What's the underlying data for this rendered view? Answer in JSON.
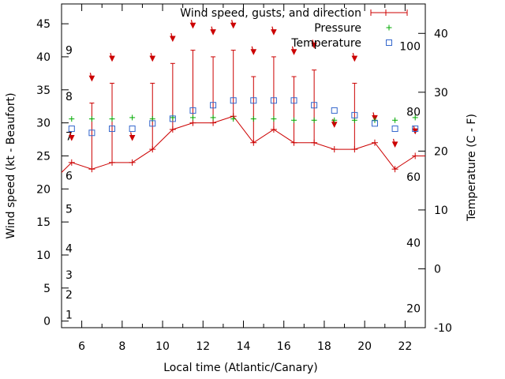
{
  "chart_data": {
    "type": "line",
    "title": "",
    "xlabel": "Local time (Atlantic/Canary)",
    "ylabel_left": "Wind speed (kt - Beaufort)",
    "ylabel_right": "Temperature (C - F)",
    "xlim": [
      5,
      23
    ],
    "ylim_left": [
      -1,
      48
    ],
    "ylim_right": [
      -10,
      45
    ],
    "x_ticks": [
      6,
      8,
      10,
      12,
      14,
      16,
      18,
      20,
      22
    ],
    "y_left_ticks": [
      0,
      5,
      10,
      15,
      20,
      25,
      30,
      35,
      40,
      45
    ],
    "y_right_ticks": [
      -10,
      0,
      10,
      20,
      30,
      40
    ],
    "beaufort_labels": [
      {
        "label": "1",
        "kt": 1
      },
      {
        "label": "2",
        "kt": 4
      },
      {
        "label": "3",
        "kt": 7
      },
      {
        "label": "4",
        "kt": 11
      },
      {
        "label": "5",
        "kt": 17
      },
      {
        "label": "6",
        "kt": 22
      },
      {
        "label": "7",
        "kt": 28
      },
      {
        "label": "8",
        "kt": 34
      },
      {
        "label": "9",
        "kt": 41
      }
    ],
    "fahrenheit_labels": [
      {
        "label": "20",
        "c": -6.7
      },
      {
        "label": "40",
        "c": 4.4
      },
      {
        "label": "60",
        "c": 15.6
      },
      {
        "label": "80",
        "c": 26.7
      },
      {
        "label": "100",
        "c": 37.8
      }
    ],
    "legend": {
      "position": "top-right",
      "entries": [
        "Wind speed, gusts, and direction",
        "Pressure",
        "Temperature"
      ]
    },
    "colors": {
      "wind": "#cc0000",
      "pressure": "#00aa00",
      "temperature": "#3366cc"
    },
    "series": [
      {
        "name": "Wind speed, gusts, and direction",
        "x": [
          5.5,
          6.5,
          7.5,
          8.5,
          9.5,
          10.5,
          11.5,
          12.5,
          13.5,
          14.5,
          15.5,
          16.5,
          17.5,
          18.5,
          19.5,
          20.5,
          21.5,
          22.5
        ],
        "speed": [
          24,
          23,
          24,
          24,
          26,
          29,
          30,
          30,
          31,
          27,
          29,
          27,
          27,
          26,
          26,
          27,
          23,
          25
        ],
        "gust": [
          null,
          33,
          36,
          null,
          36,
          39,
          41,
          40,
          41,
          37,
          40,
          37,
          38,
          null,
          36,
          null,
          null,
          null
        ],
        "arrow_y": [
          27.5,
          36.5,
          39.5,
          27.5,
          39.5,
          42.5,
          44.5,
          43.5,
          44.5,
          40.5,
          43.5,
          40.5,
          41.5,
          29.5,
          39.5,
          30.5,
          26.5,
          28.5
        ]
      },
      {
        "name": "Pressure",
        "x": [
          5.5,
          6.5,
          7.5,
          8.5,
          9.5,
          10.5,
          11.5,
          12.5,
          13.5,
          14.5,
          15.5,
          16.5,
          17.5,
          18.5,
          19.5,
          20.5,
          21.5,
          22.5
        ],
        "values_on_left_axis": [
          30.6,
          30.6,
          30.6,
          30.8,
          30.6,
          30.8,
          30.8,
          30.8,
          30.6,
          30.6,
          30.6,
          30.4,
          30.4,
          30.4,
          30.4,
          30.4,
          30.4,
          30.8
        ]
      },
      {
        "name": "Temperature",
        "x": [
          5.5,
          6.5,
          7.5,
          8.5,
          9.5,
          10.5,
          11.5,
          12.5,
          13.5,
          14.5,
          15.5,
          16.5,
          17.5,
          18.5,
          19.5,
          20.5,
          21.5,
          22.5
        ],
        "values_c": [
          23.8,
          23.1,
          23.8,
          23.8,
          24.7,
          25.5,
          26.9,
          27.8,
          28.6,
          28.6,
          28.6,
          28.6,
          27.8,
          26.9,
          26.1,
          24.7,
          23.8,
          23.8
        ]
      }
    ]
  }
}
